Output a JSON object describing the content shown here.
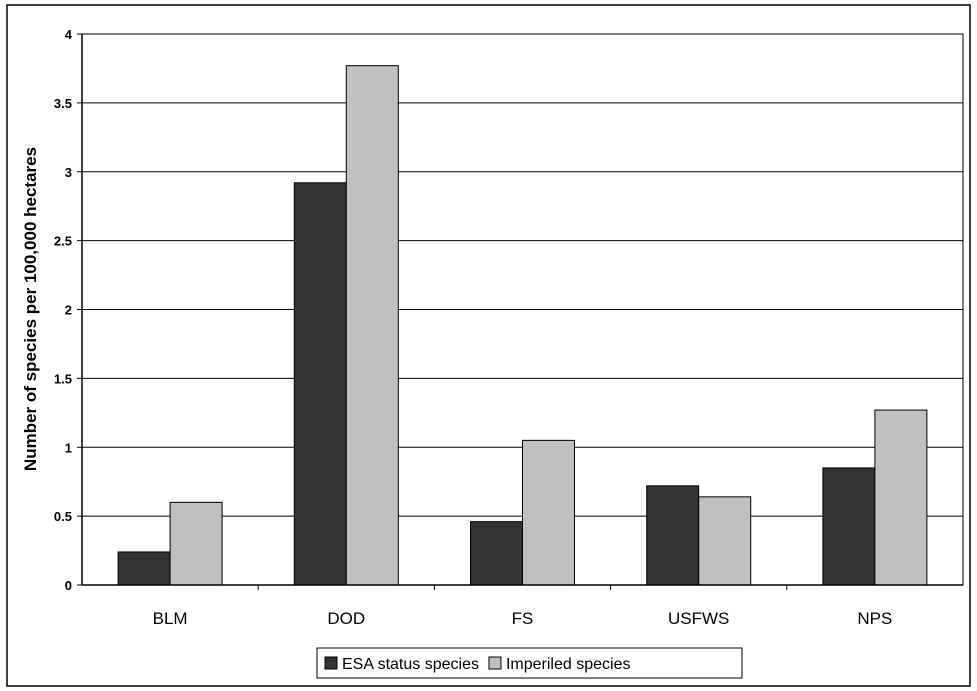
{
  "chart_data": {
    "type": "bar",
    "title": "",
    "xlabel": "",
    "ylabel": "Number of species per 100,000 hectares",
    "ylim": [
      0,
      4
    ],
    "yticks": [
      0,
      0.5,
      1,
      1.5,
      2,
      2.5,
      3,
      3.5,
      4
    ],
    "grid": true,
    "legend_position": "bottom",
    "categories": [
      "BLM",
      "DOD",
      "FS",
      "USFWS",
      "NPS"
    ],
    "series": [
      {
        "name": "ESA status species",
        "color": "#333333",
        "values": [
          0.24,
          2.92,
          0.46,
          0.72,
          0.85
        ]
      },
      {
        "name": "Imperiled species",
        "color": "#c0c0c0",
        "values": [
          0.6,
          3.77,
          1.05,
          0.64,
          1.27
        ]
      }
    ]
  }
}
